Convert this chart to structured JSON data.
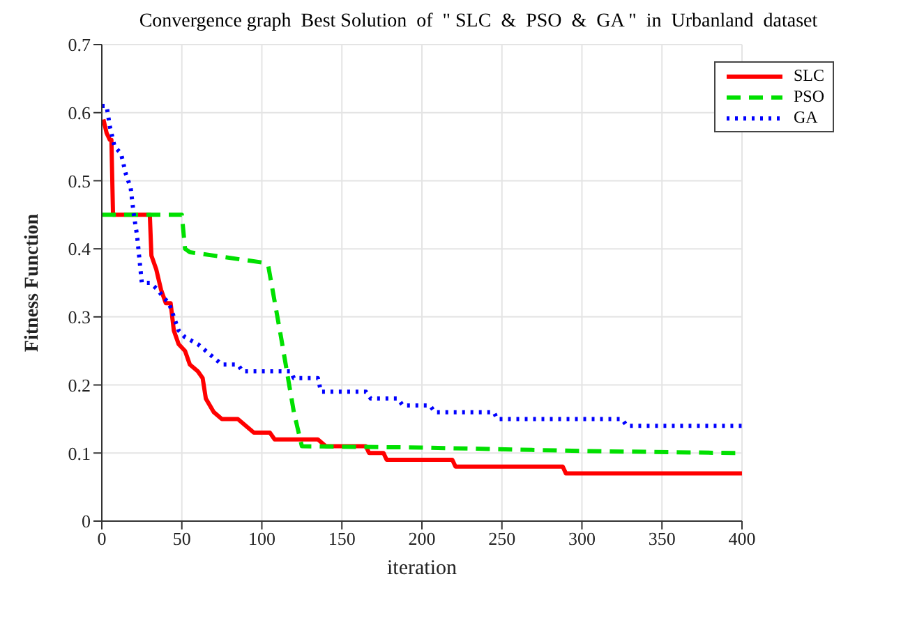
{
  "chart_data": {
    "type": "line",
    "title": "Convergence graph  Best Solution  of  \" SLC  &  PSO  &  GA \"  in  Urbanland  dataset",
    "xlabel": "iteration",
    "ylabel": "Fitness Function",
    "xlim": [
      0,
      400
    ],
    "xticks": [
      0,
      50,
      100,
      150,
      200,
      250,
      300,
      350,
      400
    ],
    "ylim": [
      0,
      0.7
    ],
    "yticks": [
      0,
      0.1,
      0.2,
      0.3,
      0.4,
      0.5,
      0.6,
      0.7
    ],
    "grid": true,
    "legend": "top right",
    "series": [
      {
        "name": "SLC",
        "color": "#ff0000",
        "line_style": "solid",
        "x": [
          1,
          3,
          5,
          6,
          7,
          30,
          31,
          34,
          37,
          40,
          43,
          45,
          48,
          52,
          55,
          60,
          63,
          65,
          70,
          75,
          85,
          90,
          95,
          105,
          108,
          135,
          140,
          165,
          167,
          176,
          178,
          219,
          221,
          288,
          290,
          400
        ],
        "values": [
          0.59,
          0.57,
          0.56,
          0.56,
          0.45,
          0.45,
          0.39,
          0.37,
          0.34,
          0.32,
          0.32,
          0.28,
          0.26,
          0.25,
          0.23,
          0.22,
          0.21,
          0.18,
          0.16,
          0.15,
          0.15,
          0.14,
          0.13,
          0.13,
          0.12,
          0.12,
          0.11,
          0.11,
          0.1,
          0.1,
          0.09,
          0.09,
          0.08,
          0.08,
          0.07,
          0.07
        ]
      },
      {
        "name": "PSO",
        "color": "#00e000",
        "line_style": "dashed",
        "x": [
          0,
          50,
          52,
          55,
          100,
          104,
          112,
          120,
          125,
          200,
          300,
          395,
          400
        ],
        "values": [
          0.45,
          0.45,
          0.4,
          0.395,
          0.38,
          0.375,
          0.27,
          0.16,
          0.11,
          0.108,
          0.103,
          0.1,
          0.1
        ]
      },
      {
        "name": "GA",
        "color": "#0000ff",
        "line_style": "dotted",
        "x": [
          0,
          3,
          5,
          8,
          12,
          15,
          18,
          20,
          22,
          25,
          30,
          35,
          38,
          42,
          45,
          48,
          52,
          60,
          65,
          70,
          75,
          85,
          88,
          118,
          120,
          135,
          137,
          165,
          168,
          185,
          188,
          205,
          208,
          245,
          247,
          325,
          328,
          400
        ],
        "values": [
          0.61,
          0.61,
          0.58,
          0.55,
          0.54,
          0.51,
          0.49,
          0.45,
          0.42,
          0.35,
          0.35,
          0.34,
          0.33,
          0.32,
          0.3,
          0.28,
          0.27,
          0.26,
          0.25,
          0.24,
          0.23,
          0.23,
          0.22,
          0.22,
          0.21,
          0.21,
          0.19,
          0.19,
          0.18,
          0.18,
          0.17,
          0.17,
          0.16,
          0.16,
          0.15,
          0.15,
          0.14,
          0.14
        ]
      }
    ]
  }
}
